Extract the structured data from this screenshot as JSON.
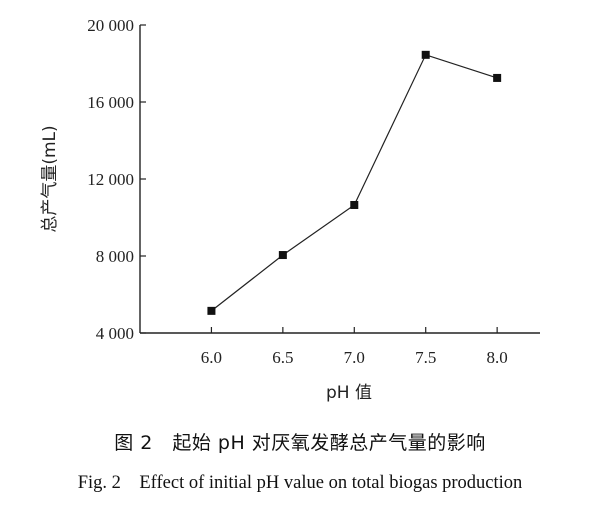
{
  "chart_data": {
    "type": "line",
    "xlabel": "pH 值",
    "ylabel": "总产气量(mL)",
    "x": [
      6.0,
      6.5,
      7.0,
      7.5,
      8.0
    ],
    "x_tick_labels": [
      "6.0",
      "6.5",
      "7.0",
      "7.5",
      "8.0"
    ],
    "y_ticks": [
      4000,
      8000,
      12000,
      16000,
      20000
    ],
    "y_tick_labels": [
      "4 000",
      "8 000",
      "12 000",
      "16 000",
      "20 000"
    ],
    "series": [
      {
        "values": [
          5150,
          8050,
          10650,
          18450,
          17250
        ]
      }
    ],
    "xlim": [
      5.5,
      8.3
    ],
    "ylim": [
      4000,
      20000
    ],
    "marker": "square",
    "line_color": "#222222",
    "grid": false
  },
  "caption": {
    "chinese": "图 2　起始 pH 对厌氧发酵总产气量的影响",
    "english": "Fig. 2　Effect of initial pH value on total biogas production"
  }
}
